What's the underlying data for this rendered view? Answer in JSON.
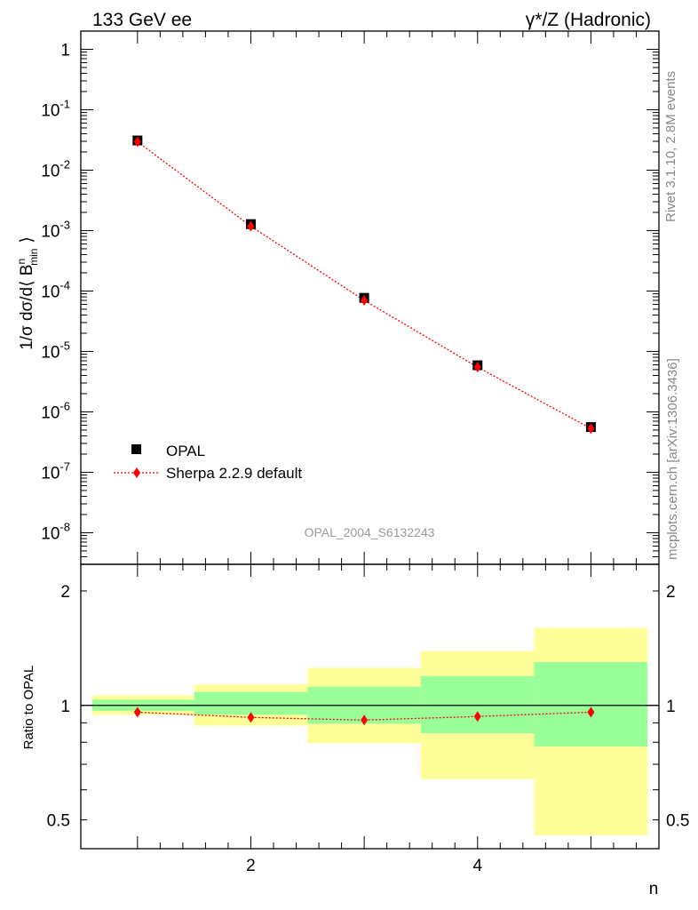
{
  "header": {
    "left_title": "133 GeV ee",
    "right_title": "γ*/Z (Hadronic)"
  },
  "side_labels": {
    "rivet": "Rivet 3.1.10,  2.8M events",
    "mcplots": "mcplots.cern.ch [arXiv:1306.3436]"
  },
  "watermark": "OPAL_2004_S6132243",
  "colors": {
    "data": "#000000",
    "mc": "#ff0000",
    "band_inner": "#99ff99",
    "band_outer": "#ffff99"
  },
  "chart_data": [
    {
      "type": "scatter",
      "panel": "main",
      "ylabel": "1/σ dσ/d⟨ B",
      "ylabel_sup": "n",
      "ylabel_sub": "min",
      "ylabel_close": "⟩",
      "yscale": "log",
      "xlim": [
        0.5,
        5.6
      ],
      "ylim": [
        3e-09,
        2
      ],
      "ytick_values": [
        1e-08,
        1e-07,
        1e-06,
        1e-05,
        0.0001,
        0.001,
        0.01,
        0.1,
        1
      ],
      "ytick_labels": [
        {
          "base": "10",
          "exp": "-8"
        },
        {
          "base": "10",
          "exp": "-7"
        },
        {
          "base": "10",
          "exp": "-6"
        },
        {
          "base": "10",
          "exp": "-5"
        },
        {
          "base": "10",
          "exp": "-4"
        },
        {
          "base": "10",
          "exp": "-3"
        },
        {
          "base": "10",
          "exp": "-2"
        },
        {
          "base": "10",
          "exp": "-1"
        },
        {
          "base": "1",
          "exp": ""
        }
      ],
      "legend_position": "bottom-left",
      "series": [
        {
          "name": "OPAL",
          "marker": "square",
          "x": [
            1,
            2,
            3,
            4,
            5
          ],
          "values": [
            0.031,
            0.00128,
            7.7e-05,
            5.9e-06,
            5.6e-07
          ]
        },
        {
          "name": "Sherpa 2.2.9 default",
          "marker": "diamond",
          "line": "dotted",
          "x": [
            1,
            2,
            3,
            4,
            5
          ],
          "values": [
            0.0295,
            0.00118,
            7e-05,
            5.5e-06,
            5.3e-07
          ]
        }
      ]
    },
    {
      "type": "line",
      "panel": "ratio",
      "xlabel": "n",
      "ylabel": "Ratio to OPAL",
      "yscale": "log",
      "xlim": [
        0.5,
        5.6
      ],
      "ylim": [
        0.42,
        2.35
      ],
      "xtick_labels": [
        {
          "x": 2,
          "label": "2"
        },
        {
          "x": 4,
          "label": "4"
        }
      ],
      "ytick_labels": [
        {
          "y": 0.5,
          "label": "0.5"
        },
        {
          "y": 1,
          "label": "1"
        },
        {
          "y": 2,
          "label": "2"
        }
      ],
      "reference_line": 1,
      "bins": [
        {
          "x_low": 0.6,
          "x_high": 1.5,
          "inner": [
            0.968,
            1.035
          ],
          "outer": [
            0.944,
            1.062
          ]
        },
        {
          "x_low": 1.5,
          "x_high": 2.5,
          "inner": [
            0.945,
            1.085
          ],
          "outer": [
            0.885,
            1.135
          ]
        },
        {
          "x_low": 2.5,
          "x_high": 3.5,
          "inner": [
            0.895,
            1.12
          ],
          "outer": [
            0.795,
            1.255
          ]
        },
        {
          "x_low": 3.5,
          "x_high": 4.5,
          "inner": [
            0.845,
            1.195
          ],
          "outer": [
            0.64,
            1.39
          ]
        },
        {
          "x_low": 4.5,
          "x_high": 5.5,
          "inner": [
            0.78,
            1.3
          ],
          "outer": [
            0.455,
            1.6
          ]
        }
      ],
      "series": [
        {
          "name": "Sherpa 2.2.9 default",
          "marker": "diamond",
          "line": "dotted",
          "x": [
            1,
            2,
            3,
            4,
            5
          ],
          "values": [
            0.96,
            0.93,
            0.915,
            0.935,
            0.96
          ]
        }
      ]
    }
  ]
}
